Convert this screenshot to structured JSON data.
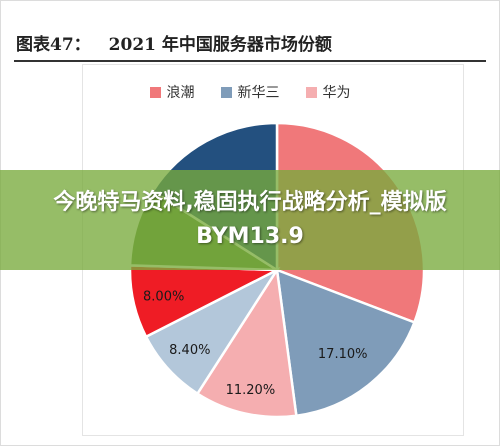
{
  "header": {
    "figure_label": "图表47：",
    "figure_title": "2021 年中国服务器市场份额"
  },
  "overlay": {
    "text": "今晚特马资料,稳固执行战略分析_模拟版BYM13.9"
  },
  "chart_data": {
    "type": "pie",
    "title": "2021 年中国服务器市场份额",
    "legend_position": "top",
    "legend": [
      "浪潮",
      "新华三",
      "华为"
    ],
    "slices": [
      {
        "name": "浪潮",
        "value": 30.8,
        "color": "#f0787a"
      },
      {
        "name": "新华三",
        "value": 17.1,
        "label": "17.10%",
        "color": "#7f9cb9"
      },
      {
        "name": "",
        "value": 11.2,
        "label": "11.20%",
        "color": "#f5aeb0"
      },
      {
        "name": "",
        "value": 8.4,
        "label": "8.40%",
        "color": "#b3c7da"
      },
      {
        "name": "",
        "value": 8.0,
        "label": "8.00%",
        "color": "#ef1c25"
      },
      {
        "name": "",
        "value": 8.5,
        "color": "#5e8a3a"
      },
      {
        "name": "",
        "value": 16.0,
        "color": "#23507f"
      }
    ]
  }
}
